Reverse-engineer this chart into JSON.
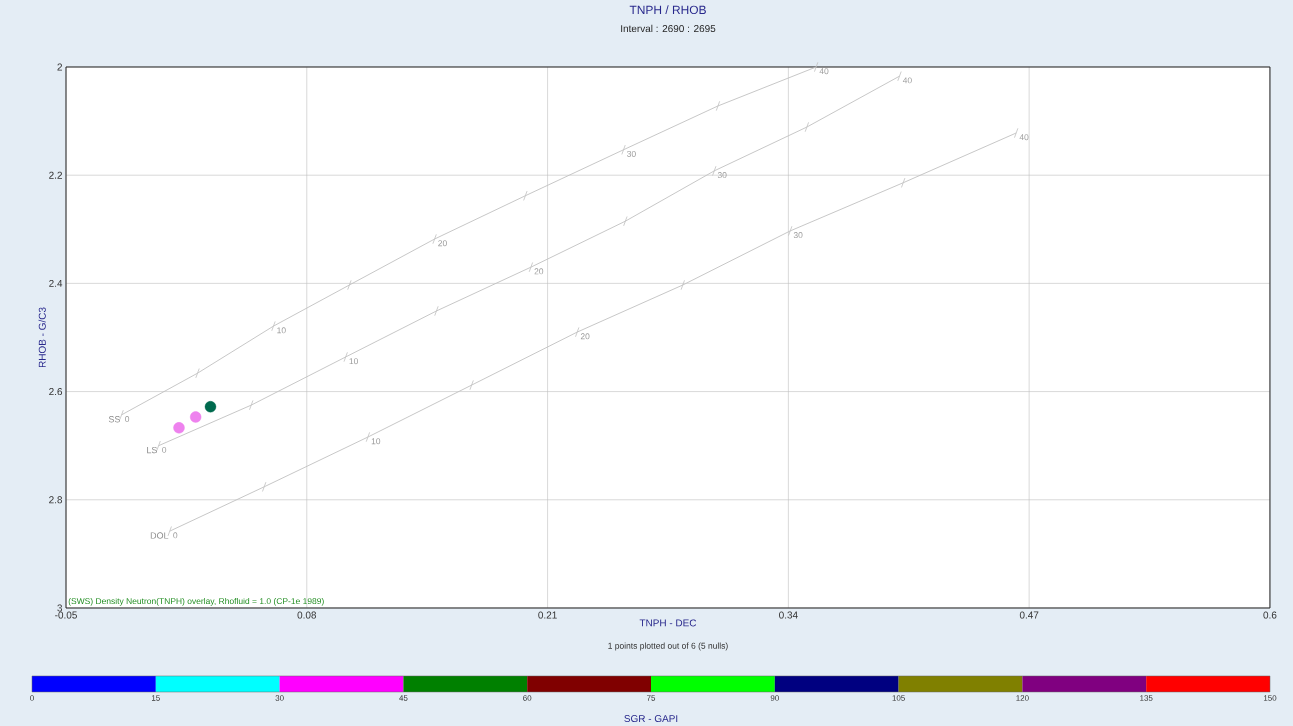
{
  "chart_data": {
    "type": "scatter",
    "title": "TNPH / RHOB",
    "subtitle": "Interval : 2690 : 2695",
    "xlabel": "TNPH - DEC",
    "ylabel": "RHOB - G/C3",
    "clabel": "SGR - GAPI",
    "xlim": [
      -0.05,
      0.6
    ],
    "xticks": [
      -0.05,
      0.08,
      0.21,
      0.34,
      0.47,
      0.6
    ],
    "ylim": [
      3,
      2
    ],
    "yticks": [
      2,
      2.2,
      2.4,
      2.6,
      2.8,
      3
    ],
    "clim": [
      0,
      150
    ],
    "cticks": [
      0,
      15,
      30,
      45,
      60,
      75,
      90,
      105,
      120,
      135,
      150
    ],
    "grid": true,
    "series": [
      {
        "name": "SS",
        "type": "line",
        "marker": "cross",
        "color": "#c0c0c0",
        "x": [
          -0.02,
          0.021,
          0.062,
          0.103,
          0.149,
          0.198,
          0.251,
          0.302,
          0.355
        ],
        "values": [
          2.643,
          2.566,
          2.479,
          2.403,
          2.318,
          2.238,
          2.153,
          2.072,
          2.0
        ]
      },
      {
        "name": "LS",
        "type": "line",
        "marker": "cross",
        "color": "#c0c0c0",
        "x": [
          0.0,
          0.05,
          0.101,
          0.15,
          0.201,
          0.252,
          0.3,
          0.35,
          0.4
        ],
        "values": [
          2.7,
          2.625,
          2.536,
          2.451,
          2.37,
          2.285,
          2.192,
          2.111,
          2.017
        ]
      },
      {
        "name": "DOL",
        "type": "line",
        "marker": "cross",
        "color": "#c0c0c0",
        "x": [
          0.006,
          0.057,
          0.113,
          0.169,
          0.226,
          0.283,
          0.341,
          0.402,
          0.463
        ],
        "values": [
          2.858,
          2.776,
          2.684,
          2.588,
          2.49,
          2.403,
          2.303,
          2.214,
          2.122
        ]
      },
      {
        "marker": "circle",
        "x": [
          0.011,
          0.02,
          0.028
        ],
        "values": [
          2.667,
          2.647,
          2.628
        ],
        "colors": [
          "#ee82ee",
          "#ee82ee",
          "#006a4e"
        ]
      }
    ],
    "annotations": [
      "(SWS) Density Neutron(TNPH) overlay, Rhofluid = 1.0 (CP-1e 1989)",
      "1 points plotted out of 6 (5 nulls)",
      {
        "text": "0",
        "x": -0.02,
        "y": 2.643
      },
      {
        "text": "10",
        "x": 0.062,
        "y": 2.479
      },
      {
        "text": "20",
        "x": 0.149,
        "y": 2.318
      },
      {
        "text": "30",
        "x": 0.251,
        "y": 2.153
      },
      {
        "text": "40",
        "x": 0.355,
        "y": 2.0
      },
      {
        "text": "0",
        "x": 0.0,
        "y": 2.7
      },
      {
        "text": "10",
        "x": 0.101,
        "y": 2.536
      },
      {
        "text": "20",
        "x": 0.201,
        "y": 2.37
      },
      {
        "text": "30",
        "x": 0.3,
        "y": 2.192
      },
      {
        "text": "40",
        "x": 0.4,
        "y": 2.017
      },
      {
        "text": "0",
        "x": 0.006,
        "y": 2.858
      },
      {
        "text": "10",
        "x": 0.113,
        "y": 2.684
      },
      {
        "text": "20",
        "x": 0.226,
        "y": 2.49
      },
      {
        "text": "30",
        "x": 0.341,
        "y": 2.303
      },
      {
        "text": "40",
        "x": 0.463,
        "y": 2.122
      }
    ]
  }
}
